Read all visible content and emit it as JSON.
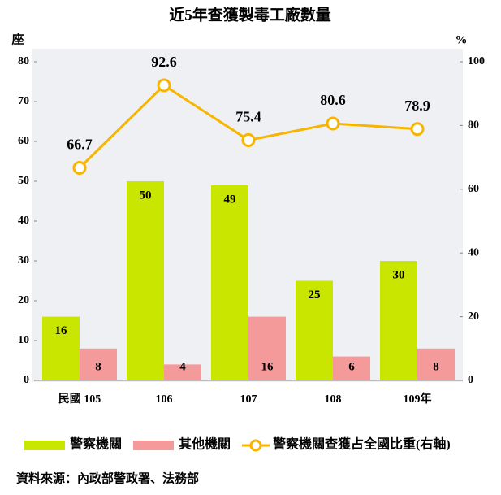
{
  "chart_data": {
    "type": "bar",
    "title": "近5年查獲製毒工廠數量",
    "y_label": "座",
    "y2_label": "%",
    "categories": [
      "民國 105",
      "106",
      "107",
      "108",
      "109年"
    ],
    "series": [
      {
        "name": "警察機關",
        "color": "#c8e600",
        "values": [
          16,
          50,
          49,
          25,
          30
        ]
      },
      {
        "name": "其他機關",
        "color": "#f59a9a",
        "values": [
          8,
          4,
          16,
          6,
          8
        ]
      },
      {
        "name": "警察機關查獲占全國比重(右軸)",
        "type": "line",
        "axis": "y2",
        "color": "#f7b500",
        "values": [
          66.7,
          92.6,
          75.4,
          80.6,
          78.9
        ]
      }
    ],
    "ylim": [
      0,
      80
    ],
    "yticks": [
      0,
      10,
      20,
      30,
      40,
      50,
      60,
      70,
      80
    ],
    "y2lim": [
      0,
      100
    ],
    "y2ticks": [
      0,
      20,
      40,
      60,
      80,
      100
    ],
    "source": "資料來源：內政部警政署、法務部"
  }
}
